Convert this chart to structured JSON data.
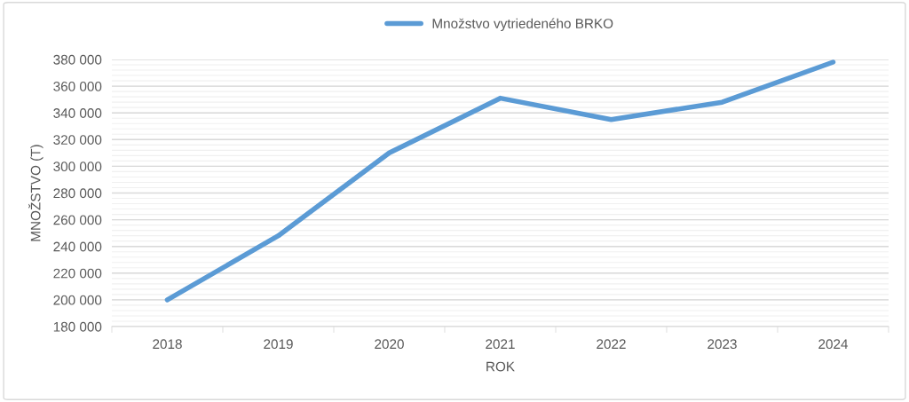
{
  "chart_data": {
    "type": "line",
    "xlabel": "ROK",
    "ylabel": "MNOŽSTVO (T)",
    "categories": [
      "2018",
      "2019",
      "2020",
      "2021",
      "2022",
      "2023",
      "2024"
    ],
    "series": [
      {
        "name": "Množstvo vytriedeného BRKO",
        "color": "#5b9bd5",
        "values": [
          200000,
          248000,
          310000,
          351000,
          335000,
          348000,
          378000
        ]
      }
    ],
    "ylim": [
      180000,
      380000
    ],
    "yticks": [
      {
        "value": 180000,
        "label": "180 000"
      },
      {
        "value": 200000,
        "label": "200 000"
      },
      {
        "value": 220000,
        "label": "220 000"
      },
      {
        "value": 240000,
        "label": "240 000"
      },
      {
        "value": 260000,
        "label": "260 000"
      },
      {
        "value": 280000,
        "label": "280 000"
      },
      {
        "value": 300000,
        "label": "300 000"
      },
      {
        "value": 320000,
        "label": "320 000"
      },
      {
        "value": 340000,
        "label": "340 000"
      },
      {
        "value": 360000,
        "label": "360 000"
      },
      {
        "value": 380000,
        "label": "380 000"
      }
    ],
    "grid": "y",
    "legend": "top",
    "marker": "none",
    "line_style": "solid"
  }
}
